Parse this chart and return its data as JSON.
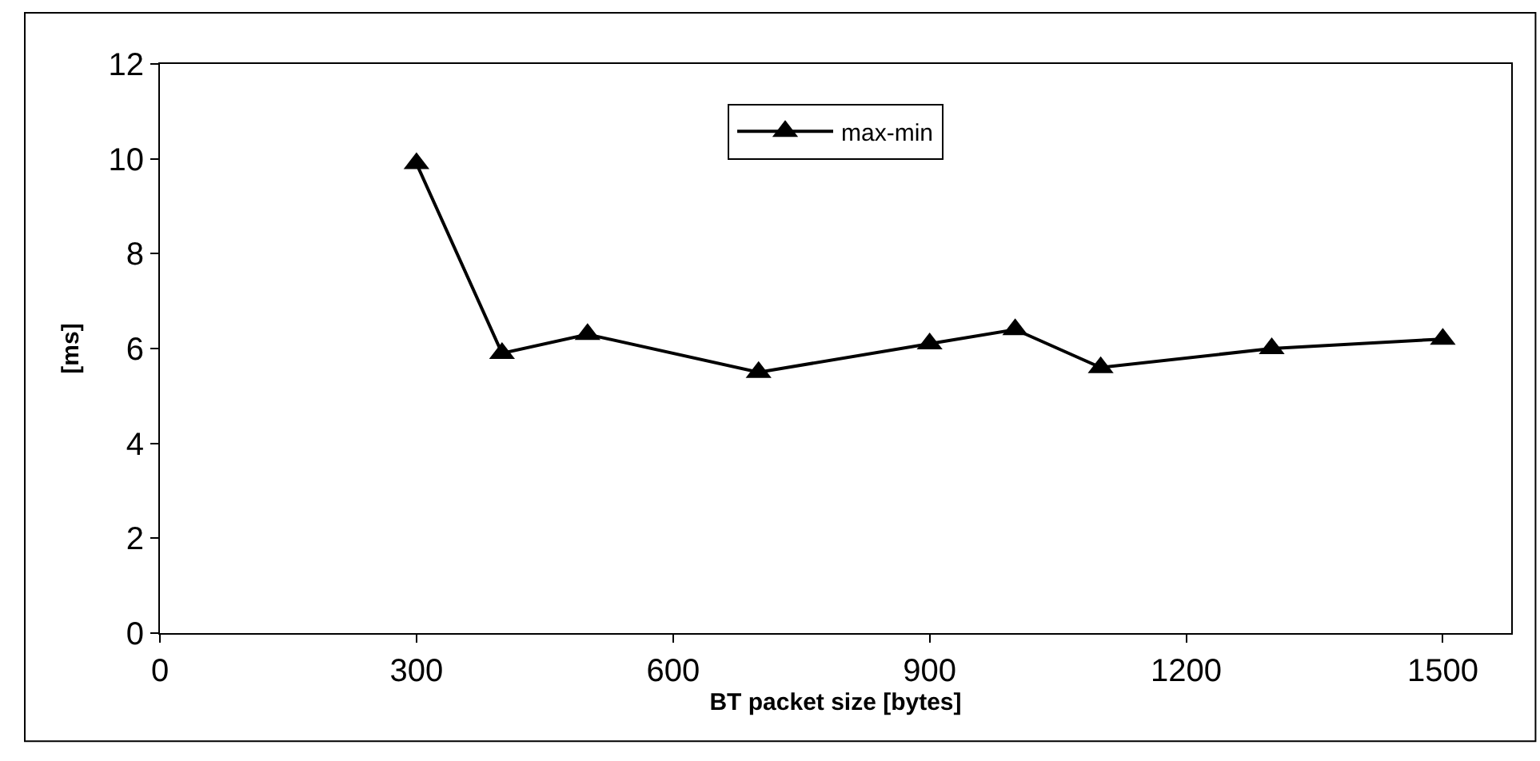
{
  "chart_data": {
    "type": "line",
    "xlabel": "BT packet size [bytes]",
    "ylabel": "[ms]",
    "x": [
      300,
      400,
      500,
      700,
      900,
      1000,
      1100,
      1300,
      1500
    ],
    "series": [
      {
        "name": "max-min",
        "color": "#000000",
        "values": [
          9.9,
          5.9,
          6.3,
          5.5,
          6.1,
          6.4,
          5.6,
          6.0,
          6.2
        ]
      }
    ],
    "xlim": [
      0,
      1580
    ],
    "xticks": [
      0,
      300,
      600,
      900,
      1200,
      1500
    ],
    "ylim": [
      0,
      12
    ],
    "yticks": [
      0,
      2,
      4,
      6,
      8,
      10,
      12
    ],
    "grid": false,
    "legend": "top",
    "marker": "triangle",
    "line_style": "solid"
  }
}
